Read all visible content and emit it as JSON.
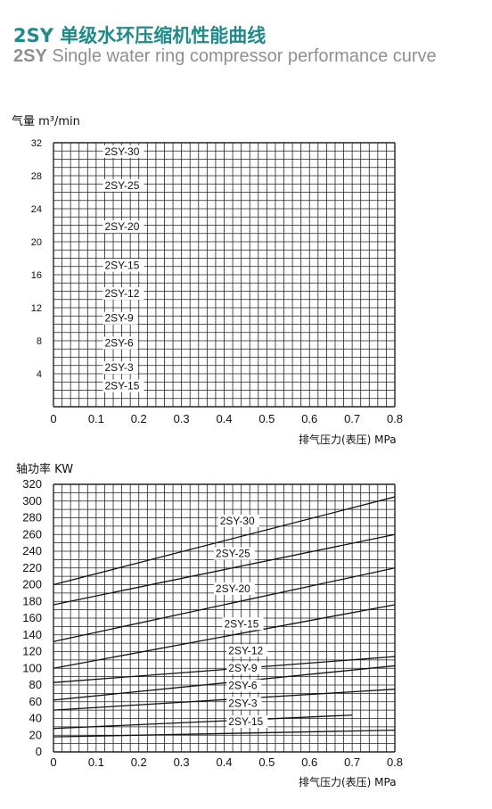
{
  "header": {
    "model": "2SY",
    "title_cn": "单级水环压缩机性能曲线",
    "title_en": "Single water ring compressor performance curve",
    "accent_color": "#1f8a8a",
    "subtitle_color": "#8f8f8f"
  },
  "chart_data": [
    {
      "type": "line",
      "ylabel": "气量 m³/min",
      "xlabel": "排气压力(表压) MPa",
      "xlim": [
        0,
        0.8
      ],
      "ylim": [
        0,
        32
      ],
      "x_ticks": [
        "0",
        "0.1",
        "0.2",
        "0.3",
        "0.4",
        "0.5",
        "0.6",
        "0.7",
        "0.8"
      ],
      "y_ticks": [
        "4",
        "8",
        "12",
        "16",
        "20",
        "24",
        "28",
        "32"
      ],
      "grid": true,
      "series": [
        {
          "name": "2SY-30",
          "label_x": 0.12,
          "label_y": 30.5
        },
        {
          "name": "2SY-25",
          "label_x": 0.12,
          "label_y": 26.4
        },
        {
          "name": "2SY-20",
          "label_x": 0.12,
          "label_y": 21.4
        },
        {
          "name": "2SY-15",
          "label_x": 0.12,
          "label_y": 16.7
        },
        {
          "name": "2SY-12",
          "label_x": 0.12,
          "label_y": 13.3
        },
        {
          "name": "2SY-9",
          "label_x": 0.12,
          "label_y": 10.3
        },
        {
          "name": "2SY-6",
          "label_x": 0.12,
          "label_y": 7.3
        },
        {
          "name": "2SY-3",
          "label_x": 0.12,
          "label_y": 4.3
        },
        {
          "name": "2SY-15",
          "label_x": 0.12,
          "label_y": 2.1
        }
      ]
    },
    {
      "type": "line",
      "ylabel": "轴功率 KW",
      "xlabel": "排气压力(表压) MPa",
      "xlim": [
        0,
        0.8
      ],
      "ylim": [
        0,
        320
      ],
      "x_ticks": [
        "0",
        "0.1",
        "0.2",
        "0.3",
        "0.4",
        "0.5",
        "0.6",
        "0.7",
        "0.8"
      ],
      "y_ticks": [
        "0",
        "20",
        "40",
        "60",
        "80",
        "100",
        "120",
        "140",
        "160",
        "180",
        "200",
        "220",
        "240",
        "260",
        "280",
        "300",
        "320"
      ],
      "grid": true,
      "series": [
        {
          "name": "2SY-30",
          "x": [
            0,
            0.8
          ],
          "y": [
            200,
            305
          ],
          "label_x": 0.39,
          "label_y": 272
        },
        {
          "name": "2SY-25",
          "x": [
            0,
            0.8
          ],
          "y": [
            176,
            260
          ],
          "label_x": 0.38,
          "label_y": 233
        },
        {
          "name": "2SY-20",
          "x": [
            0,
            0.8
          ],
          "y": [
            132,
            220
          ],
          "label_x": 0.38,
          "label_y": 191
        },
        {
          "name": "2SY-15",
          "x": [
            0,
            0.8
          ],
          "y": [
            100,
            176
          ],
          "label_x": 0.4,
          "label_y": 149
        },
        {
          "name": "2SY-12",
          "x": [
            0,
            0.8
          ],
          "y": [
            83,
            114
          ],
          "label_x": 0.41,
          "label_y": 117
        },
        {
          "name": "2SY-9",
          "x": [
            0,
            0.8
          ],
          "y": [
            62,
            103
          ],
          "label_x": 0.41,
          "label_y": 96
        },
        {
          "name": "2SY-6",
          "x": [
            0,
            0.8
          ],
          "y": [
            50,
            75
          ],
          "label_x": 0.41,
          "label_y": 75
        },
        {
          "name": "2SY-3",
          "x": [
            0,
            0.7
          ],
          "y": [
            28,
            44
          ],
          "label_x": 0.41,
          "label_y": 54
        },
        {
          "name": "2SY-15",
          "x": [
            0,
            0.8
          ],
          "y": [
            18,
            26
          ],
          "label_x": 0.41,
          "label_y": 32
        }
      ]
    }
  ]
}
